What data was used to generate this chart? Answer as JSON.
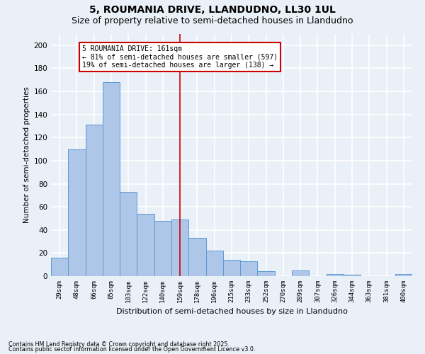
{
  "title1": "5, ROUMANIA DRIVE, LLANDUDNO, LL30 1UL",
  "title2": "Size of property relative to semi-detached houses in Llandudno",
  "xlabel": "Distribution of semi-detached houses by size in Llandudno",
  "ylabel": "Number of semi-detached properties",
  "categories": [
    "29sqm",
    "48sqm",
    "66sqm",
    "85sqm",
    "103sqm",
    "122sqm",
    "140sqm",
    "159sqm",
    "178sqm",
    "196sqm",
    "215sqm",
    "233sqm",
    "252sqm",
    "270sqm",
    "289sqm",
    "307sqm",
    "326sqm",
    "344sqm",
    "363sqm",
    "381sqm",
    "400sqm"
  ],
  "values": [
    16,
    110,
    131,
    168,
    73,
    54,
    48,
    49,
    33,
    22,
    14,
    13,
    4,
    0,
    5,
    0,
    2,
    1,
    0,
    0,
    2
  ],
  "bar_color": "#aec6e8",
  "bar_edge_color": "#5b9bd5",
  "vline_index": 7,
  "annotation_line1": "5 ROUMANIA DRIVE: 161sqm",
  "annotation_line2": "← 81% of semi-detached houses are smaller (597)",
  "annotation_line3": "19% of semi-detached houses are larger (138) →",
  "annotation_box_color": "#ffffff",
  "annotation_box_edge": "#cc0000",
  "vline_color": "#cc0000",
  "footer1": "Contains HM Land Registry data © Crown copyright and database right 2025.",
  "footer2": "Contains public sector information licensed under the Open Government Licence v3.0.",
  "ylim": [
    0,
    210
  ],
  "yticks": [
    0,
    20,
    40,
    60,
    80,
    100,
    120,
    140,
    160,
    180,
    200
  ],
  "bg_color": "#eaf0f8",
  "grid_color": "#ffffff",
  "title1_fontsize": 10,
  "title2_fontsize": 9
}
